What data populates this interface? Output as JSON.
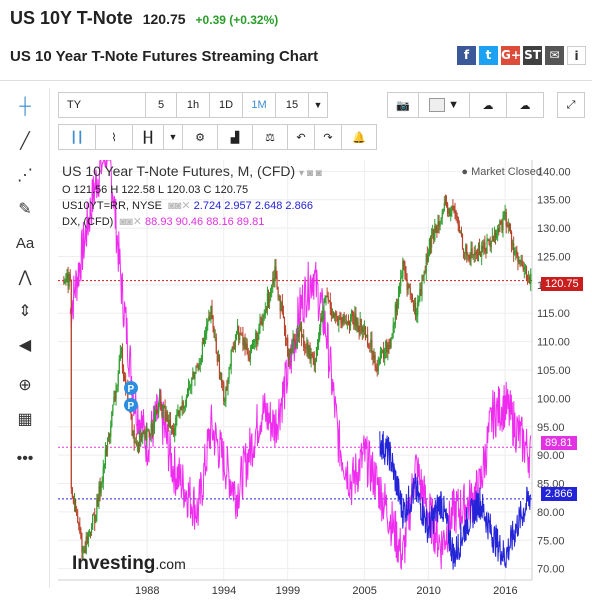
{
  "header": {
    "symbol": "US 10Y T-Note",
    "price": "120.75",
    "change": "+0.39 (+0.32%)"
  },
  "subtitle": "US 10 Year T-Note Futures Streaming Chart",
  "share_icons": [
    {
      "name": "facebook-icon",
      "glyph": "f",
      "color": "#3b5998"
    },
    {
      "name": "twitter-icon",
      "glyph": "t",
      "color": "#1da1f2"
    },
    {
      "name": "googleplus-icon",
      "glyph": "G+",
      "color": "#dd4b39"
    },
    {
      "name": "stocktwits-icon",
      "glyph": "ST",
      "color": "#404040"
    },
    {
      "name": "email-icon",
      "glyph": "✉",
      "color": "#555555"
    },
    {
      "name": "info-icon",
      "glyph": "i",
      "color": "#ffffff"
    }
  ],
  "toolbar": {
    "symbol_field": "TY",
    "intervals": [
      "5",
      "1h",
      "1D",
      "1M",
      "15"
    ],
    "selected_interval": "1M"
  },
  "legend": {
    "main": "US 10 Year T-Note Futures, M, (CFD)",
    "ohlc": "O 121.56 H 122.58 L 120.03 C 120.75",
    "study1_name": "US10YT=RR, NYSE",
    "study1_values": "2.724 2.957 2.648 2.866",
    "study2_name": "DX, (CFD)",
    "study2_values": "88.93 90.46 88.16 89.81",
    "market_status": "Market Closed"
  },
  "price_tags": {
    "main": "120.75",
    "dx": "89.81",
    "yield": "2.866"
  },
  "colors": {
    "price_up": "#2e9e2e",
    "price_down": "#b8432a",
    "dx": "#ee2bee",
    "yield": "#2323d8",
    "tag_red": "#c81e1e",
    "tag_magenta": "#e233e2",
    "tag_blue": "#2323d8"
  },
  "chart_data": {
    "type": "candlestick",
    "y_ticks": [
      "140.00",
      "135.00",
      "130.00",
      "125.00",
      "120.00",
      "115.00",
      "110.00",
      "105.00",
      "100.00",
      "95.00",
      "90.00",
      "85.00",
      "80.00",
      "75.00",
      "70.00"
    ],
    "x_ticks": [
      "1988",
      "1994",
      "1999",
      "2005",
      "2010",
      "2016"
    ],
    "ylim": [
      68,
      142
    ],
    "markers": [
      "P",
      "P"
    ],
    "price_anchors": [
      [
        1982,
        85
      ],
      [
        1983,
        73
      ],
      [
        1984,
        80
      ],
      [
        1985,
        93
      ],
      [
        1986,
        108
      ],
      [
        1987,
        92
      ],
      [
        1988,
        93
      ],
      [
        1989,
        99
      ],
      [
        1990,
        94
      ],
      [
        1991,
        100
      ],
      [
        1992,
        106
      ],
      [
        1993,
        115
      ],
      [
        1994,
        100
      ],
      [
        1995,
        112
      ],
      [
        1996,
        108
      ],
      [
        1997,
        113
      ],
      [
        1998,
        123
      ],
      [
        1999,
        108
      ],
      [
        2000,
        112
      ],
      [
        2001,
        106
      ],
      [
        2002,
        118
      ],
      [
        2003,
        113
      ],
      [
        2004,
        114
      ],
      [
        2005,
        112
      ],
      [
        2006,
        106
      ],
      [
        2007,
        110
      ],
      [
        2008,
        123
      ],
      [
        2009,
        115
      ],
      [
        2010,
        126
      ],
      [
        2011,
        133
      ],
      [
        2012,
        133
      ],
      [
        2013,
        125
      ],
      [
        2014,
        126
      ],
      [
        2015,
        128
      ],
      [
        2016,
        132
      ],
      [
        2017,
        124
      ],
      [
        2018,
        120.75
      ]
    ],
    "dx_anchors": [
      [
        1982,
        115
      ],
      [
        1984,
        138
      ],
      [
        1985,
        145
      ],
      [
        1986,
        120
      ],
      [
        1987,
        100
      ],
      [
        1988,
        92
      ],
      [
        1989,
        98
      ],
      [
        1990,
        88
      ],
      [
        1992,
        80
      ],
      [
        1993,
        95
      ],
      [
        1995,
        83
      ],
      [
        1997,
        98
      ],
      [
        1998,
        95
      ],
      [
        1999,
        104
      ],
      [
        2000,
        116
      ],
      [
        2001,
        122
      ],
      [
        2002,
        112
      ],
      [
        2003,
        92
      ],
      [
        2004,
        85
      ],
      [
        2005,
        90
      ],
      [
        2006,
        85
      ],
      [
        2007,
        79
      ],
      [
        2008,
        72
      ],
      [
        2009,
        88
      ],
      [
        2010,
        80
      ],
      [
        2011,
        74
      ],
      [
        2012,
        80
      ],
      [
        2013,
        81
      ],
      [
        2014,
        84
      ],
      [
        2015,
        97
      ],
      [
        2016,
        99
      ],
      [
        2017,
        94
      ],
      [
        2018,
        89.81
      ]
    ],
    "yield_anchors": [
      [
        2006,
        93
      ],
      [
        2007,
        90
      ],
      [
        2008,
        80
      ],
      [
        2009,
        84
      ],
      [
        2010,
        77
      ],
      [
        2011,
        82
      ],
      [
        2012,
        72
      ],
      [
        2013,
        78
      ],
      [
        2014,
        82
      ],
      [
        2015,
        76
      ],
      [
        2016,
        72
      ],
      [
        2017,
        78
      ],
      [
        2018,
        83
      ]
    ]
  }
}
